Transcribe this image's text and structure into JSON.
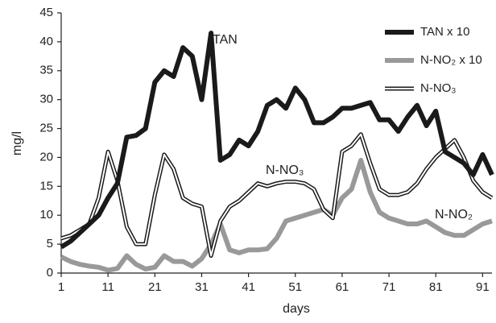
{
  "chart_data": {
    "type": "line",
    "x_label": "days",
    "y_label": "mg/l",
    "annotations": [
      "TAN",
      "N-NO₃",
      "N-NO₂"
    ],
    "x": [
      1,
      3,
      5,
      7,
      9,
      11,
      13,
      15,
      17,
      19,
      21,
      23,
      25,
      27,
      29,
      31,
      33,
      35,
      37,
      39,
      41,
      43,
      45,
      47,
      49,
      51,
      53,
      55,
      57,
      59,
      61,
      63,
      65,
      67,
      69,
      71,
      73,
      75,
      77,
      79,
      81,
      83,
      85,
      87,
      89,
      91,
      93
    ],
    "series": [
      {
        "name": "TAN x 10",
        "color": "#1a1a1a",
        "linewidth": 6,
        "values": [
          4.5,
          5.5,
          7,
          8.5,
          10,
          13,
          15.5,
          23.5,
          23.8,
          25,
          33,
          35,
          34,
          39,
          37.5,
          30,
          41.5,
          19.5,
          20.5,
          23,
          22,
          24.5,
          29,
          30,
          28.5,
          32,
          30,
          26,
          26,
          27,
          28.5,
          28.5,
          29,
          29.5,
          26.5,
          26.5,
          24.5,
          27,
          29,
          25.5,
          28,
          21,
          20,
          19,
          17,
          20.5,
          17
        ]
      },
      {
        "name": "N-NO₂ x 10",
        "color": "#999999",
        "linewidth": 6,
        "values": [
          2.8,
          2,
          1.5,
          1.2,
          1,
          0.5,
          0.8,
          3,
          1.5,
          0.7,
          1,
          3,
          2,
          2,
          1.2,
          2.5,
          5,
          8.5,
          4,
          3.5,
          4,
          4,
          4.2,
          6,
          9,
          9.5,
          10,
          10.5,
          11,
          10,
          13,
          14.5,
          19.5,
          14,
          10.5,
          9.5,
          9,
          8.5,
          8.5,
          9,
          8,
          7,
          6.5,
          6.5,
          7.5,
          8.5,
          9
        ]
      },
      {
        "name": "N-NO₃",
        "color": "#1a1a1a",
        "linewidth": 5,
        "line_style": "double",
        "values": [
          6,
          6.5,
          7.5,
          8.5,
          13,
          21,
          16,
          8,
          5,
          5,
          13.5,
          20.5,
          18,
          13,
          12,
          11.5,
          3,
          9,
          11.5,
          12.5,
          14,
          15.5,
          15,
          15.5,
          15.8,
          15.8,
          15.5,
          14.5,
          11,
          9.5,
          21,
          22,
          24,
          19,
          14.5,
          13.5,
          13.5,
          14,
          15.5,
          18,
          20,
          21.5,
          23,
          20,
          16,
          14,
          13
        ]
      }
    ],
    "xlim": [
      1,
      93
    ],
    "xticks": [
      1,
      11,
      21,
      31,
      41,
      51,
      61,
      71,
      81,
      91
    ],
    "ylim": [
      0,
      45
    ],
    "yticks": [
      0,
      5,
      10,
      15,
      20,
      25,
      30,
      35,
      40,
      45
    ],
    "legend": "upper right",
    "grid": false
  }
}
